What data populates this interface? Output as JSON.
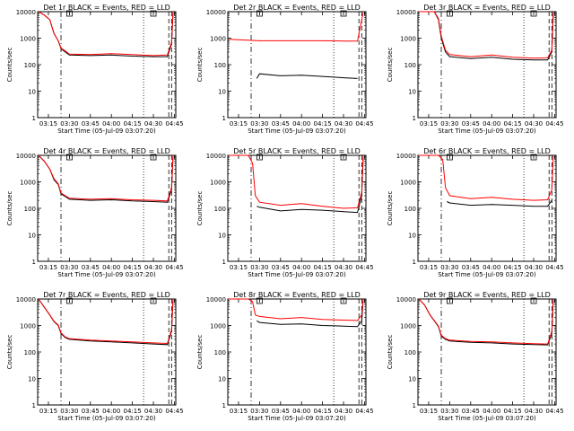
{
  "chart_data": [
    {
      "type": "line",
      "title": "Det 1r BLACK = Events, RED = LLD",
      "xlabel": "Start Time (05-Jul-09 03:07:20)",
      "ylabel": "Counts/sec",
      "yscale": "log",
      "ylim": [
        1,
        10000
      ],
      "x_tick_labels": [
        "03:15",
        "03:30",
        "03:45",
        "04:00",
        "04:15",
        "04:30",
        "04:45"
      ],
      "y_tick_labels": [
        "1",
        "10",
        "100",
        "1000",
        "10000"
      ],
      "grid": false,
      "series": [
        {
          "color": "#000000",
          "x": [
            "03:08",
            "03:12",
            "03:16",
            "03:19",
            "03:22",
            "03:24",
            "03:27",
            "03:30",
            "03:45",
            "04:00",
            "04:15",
            "04:30",
            "04:40",
            "04:43",
            "04:44"
          ],
          "values": [
            10000,
            7500,
            5000,
            1500,
            800,
            400,
            300,
            230,
            220,
            230,
            210,
            200,
            200,
            600,
            9000
          ]
        },
        {
          "color": "#ff0000",
          "x": [
            "03:08",
            "03:12",
            "03:16",
            "03:19",
            "03:22",
            "03:24",
            "03:27",
            "03:30",
            "03:45",
            "04:00",
            "04:15",
            "04:30",
            "04:40",
            "04:43",
            "04:44"
          ],
          "values": [
            10000,
            7500,
            5000,
            1500,
            800,
            420,
            330,
            250,
            240,
            260,
            240,
            220,
            230,
            700,
            10000
          ]
        }
      ]
    },
    {
      "type": "line",
      "title": "Det 2r BLACK = Events, RED = LLD",
      "xlabel": "Start Time (05-Jul-09 03:07:20)",
      "ylabel": "Counts/sec",
      "yscale": "log",
      "ylim": [
        1,
        10000
      ],
      "x_tick_labels": [
        "03:15",
        "03:30",
        "03:45",
        "04:00",
        "04:15",
        "04:30",
        "04:45"
      ],
      "y_tick_labels": [
        "1",
        "10",
        "100",
        "1000",
        "10000"
      ],
      "grid": false,
      "series": [
        {
          "color": "#000000",
          "x": [
            "03:28",
            "03:30",
            "03:45",
            "04:00",
            "04:15",
            "04:30",
            "04:40"
          ],
          "values": [
            30,
            45,
            38,
            40,
            36,
            32,
            30
          ]
        },
        {
          "color": "#ff0000",
          "x": [
            "03:08",
            "03:30",
            "03:45",
            "04:00",
            "04:15",
            "04:30",
            "04:40",
            "04:44"
          ],
          "values": [
            900,
            800,
            800,
            800,
            800,
            780,
            780,
            9000
          ]
        }
      ]
    },
    {
      "type": "line",
      "title": "Det 3r BLACK = Events, RED = LLD",
      "xlabel": "Start Time (05-Jul-09 03:07:20)",
      "ylabel": "Counts/sec",
      "yscale": "log",
      "ylim": [
        1,
        10000
      ],
      "x_tick_labels": [
        "03:15",
        "03:30",
        "03:45",
        "04:00",
        "04:15",
        "04:30",
        "04:45"
      ],
      "y_tick_labels": [
        "1",
        "10",
        "100",
        "1000",
        "10000"
      ],
      "grid": false,
      "series": [
        {
          "color": "#000000",
          "x": [
            "03:08",
            "03:12",
            "03:16",
            "03:19",
            "03:22",
            "03:24",
            "03:27",
            "03:30",
            "03:45",
            "04:00",
            "04:15",
            "04:30",
            "04:40",
            "04:43",
            "04:44"
          ],
          "values": [
            10000,
            10000,
            10000,
            10000,
            5000,
            1000,
            300,
            200,
            170,
            190,
            160,
            150,
            150,
            300,
            9000
          ]
        },
        {
          "color": "#ff0000",
          "x": [
            "03:08",
            "03:12",
            "03:16",
            "03:19",
            "03:22",
            "03:24",
            "03:27",
            "03:30",
            "03:45",
            "04:00",
            "04:15",
            "04:30",
            "04:40",
            "04:43",
            "04:44"
          ],
          "values": [
            10000,
            10000,
            10000,
            10000,
            5500,
            1200,
            350,
            240,
            200,
            230,
            190,
            175,
            180,
            350,
            10000
          ]
        }
      ]
    },
    {
      "type": "line",
      "title": "Det 4r BLACK = Events, RED = LLD",
      "xlabel": "Start Time (05-Jul-09 03:07:20)",
      "ylabel": "Counts/sec",
      "yscale": "log",
      "ylim": [
        1,
        10000
      ],
      "x_tick_labels": [
        "03:15",
        "03:30",
        "03:45",
        "04:00",
        "04:15",
        "04:30",
        "04:45"
      ],
      "y_tick_labels": [
        "1",
        "10",
        "100",
        "1000",
        "10000"
      ],
      "grid": false,
      "series": [
        {
          "color": "#000000",
          "x": [
            "03:08",
            "03:12",
            "03:16",
            "03:19",
            "03:22",
            "03:24",
            "03:27",
            "03:30",
            "03:45",
            "04:00",
            "04:15",
            "04:30",
            "04:40",
            "04:43",
            "04:44"
          ],
          "values": [
            10000,
            6000,
            3000,
            1200,
            800,
            350,
            280,
            220,
            200,
            210,
            190,
            180,
            170,
            500,
            9000
          ]
        },
        {
          "color": "#ff0000",
          "x": [
            "03:08",
            "03:12",
            "03:16",
            "03:19",
            "03:22",
            "03:24",
            "03:27",
            "03:30",
            "03:45",
            "04:00",
            "04:15",
            "04:30",
            "04:40",
            "04:43",
            "04:44"
          ],
          "values": [
            10000,
            6000,
            3000,
            1300,
            850,
            380,
            300,
            240,
            220,
            230,
            210,
            200,
            190,
            600,
            10000
          ]
        }
      ]
    },
    {
      "type": "line",
      "title": "Det 5r BLACK = Events, RED = LLD",
      "xlabel": "Start Time (05-Jul-09 03:07:20)",
      "ylabel": "Counts/sec",
      "yscale": "log",
      "ylim": [
        1,
        10000
      ],
      "x_tick_labels": [
        "03:15",
        "03:30",
        "03:45",
        "04:00",
        "04:15",
        "04:30",
        "04:45"
      ],
      "y_tick_labels": [
        "1",
        "10",
        "100",
        "1000",
        "10000"
      ],
      "grid": false,
      "series": [
        {
          "color": "#000000",
          "x": [
            "03:28",
            "03:30",
            "03:45",
            "04:00",
            "04:15",
            "04:30",
            "04:40",
            "04:43",
            "04:44"
          ],
          "values": [
            120,
            110,
            80,
            90,
            85,
            75,
            70,
            300,
            8000
          ]
        },
        {
          "color": "#ff0000",
          "x": [
            "03:08",
            "03:16",
            "03:22",
            "03:25",
            "03:27",
            "03:30",
            "03:45",
            "04:00",
            "04:15",
            "04:30",
            "04:40",
            "04:43",
            "04:44"
          ],
          "values": [
            10000,
            10000,
            10000,
            5000,
            300,
            170,
            130,
            150,
            120,
            100,
            105,
            400,
            10000
          ]
        }
      ]
    },
    {
      "type": "line",
      "title": "Det 6r BLACK = Events, RED = LLD",
      "xlabel": "Start Time (05-Jul-09 03:07:20)",
      "ylabel": "Counts/sec",
      "yscale": "log",
      "ylim": [
        1,
        10000
      ],
      "x_tick_labels": [
        "03:15",
        "03:30",
        "03:45",
        "04:00",
        "04:15",
        "04:30",
        "04:45"
      ],
      "y_tick_labels": [
        "1",
        "10",
        "100",
        "1000",
        "10000"
      ],
      "grid": false,
      "series": [
        {
          "color": "#000000",
          "x": [
            "03:28",
            "03:30",
            "03:45",
            "04:00",
            "04:15",
            "04:30",
            "04:40",
            "04:43"
          ],
          "values": [
            180,
            160,
            130,
            140,
            130,
            120,
            120,
            200
          ]
        },
        {
          "color": "#ff0000",
          "x": [
            "03:08",
            "03:16",
            "03:22",
            "03:25",
            "03:27",
            "03:30",
            "03:45",
            "04:00",
            "04:15",
            "04:30",
            "04:40",
            "04:43",
            "04:44"
          ],
          "values": [
            10000,
            10000,
            10000,
            7000,
            600,
            300,
            230,
            260,
            220,
            200,
            210,
            500,
            10000
          ]
        }
      ]
    },
    {
      "type": "line",
      "title": "Det 7r BLACK = Events, RED = LLD",
      "xlabel": "Start Time (05-Jul-09 03:07:20)",
      "ylabel": "Counts/sec",
      "yscale": "log",
      "ylim": [
        1,
        10000
      ],
      "x_tick_labels": [
        "03:15",
        "03:30",
        "03:45",
        "04:00",
        "04:15",
        "04:30",
        "04:45"
      ],
      "y_tick_labels": [
        "1",
        "10",
        "100",
        "1000",
        "10000"
      ],
      "grid": false,
      "series": [
        {
          "color": "#000000",
          "x": [
            "03:08",
            "03:12",
            "03:16",
            "03:19",
            "03:22",
            "03:24",
            "03:27",
            "03:30",
            "03:45",
            "04:00",
            "04:15",
            "04:30",
            "04:40",
            "04:43",
            "04:44"
          ],
          "values": [
            10000,
            5000,
            2500,
            1400,
            1000,
            500,
            350,
            300,
            260,
            240,
            220,
            200,
            190,
            600,
            9000
          ]
        },
        {
          "color": "#ff0000",
          "x": [
            "03:08",
            "03:12",
            "03:16",
            "03:19",
            "03:22",
            "03:24",
            "03:27",
            "03:30",
            "03:45",
            "04:00",
            "04:15",
            "04:30",
            "04:40",
            "04:43",
            "04:44"
          ],
          "values": [
            10000,
            5000,
            2500,
            1450,
            1050,
            530,
            370,
            320,
            280,
            260,
            240,
            220,
            210,
            700,
            10000
          ]
        }
      ]
    },
    {
      "type": "line",
      "title": "Det 8r BLACK = Events, RED = LLD",
      "xlabel": "Start Time (05-Jul-09 03:07:20)",
      "ylabel": "Counts/sec",
      "yscale": "log",
      "ylim": [
        1,
        10000
      ],
      "x_tick_labels": [
        "03:15",
        "03:30",
        "03:45",
        "04:00",
        "04:15",
        "04:30",
        "04:45"
      ],
      "y_tick_labels": [
        "1",
        "10",
        "100",
        "1000",
        "10000"
      ],
      "grid": false,
      "series": [
        {
          "color": "#000000",
          "x": [
            "03:28",
            "03:30",
            "03:45",
            "04:00",
            "04:15",
            "04:30",
            "04:40",
            "04:43",
            "04:44"
          ],
          "values": [
            1500,
            1300,
            1100,
            1150,
            1000,
            950,
            900,
            1500,
            9000
          ]
        },
        {
          "color": "#ff0000",
          "x": [
            "03:08",
            "03:16",
            "03:22",
            "03:25",
            "03:27",
            "03:30",
            "03:45",
            "04:00",
            "04:15",
            "04:30",
            "04:40",
            "04:43",
            "04:44"
          ],
          "values": [
            10000,
            10000,
            10000,
            8000,
            2500,
            2200,
            1800,
            2000,
            1700,
            1600,
            1550,
            2500,
            10000
          ]
        }
      ]
    },
    {
      "type": "line",
      "title": "Det 9r BLACK = Events, RED = LLD",
      "xlabel": "Start Time (05-Jul-09 03:07:20)",
      "ylabel": "Counts/sec",
      "yscale": "log",
      "ylim": [
        1,
        10000
      ],
      "x_tick_labels": [
        "03:15",
        "03:30",
        "03:45",
        "04:00",
        "04:15",
        "04:30",
        "04:45"
      ],
      "y_tick_labels": [
        "1",
        "10",
        "100",
        "1000",
        "10000"
      ],
      "grid": false,
      "series": [
        {
          "color": "#000000",
          "x": [
            "03:08",
            "03:12",
            "03:16",
            "03:19",
            "03:22",
            "03:24",
            "03:27",
            "03:30",
            "03:45",
            "04:00",
            "04:15",
            "04:30",
            "04:40",
            "04:43",
            "04:44"
          ],
          "values": [
            10000,
            6000,
            2500,
            1500,
            900,
            400,
            300,
            260,
            230,
            220,
            200,
            190,
            185,
            500,
            9000
          ]
        },
        {
          "color": "#ff0000",
          "x": [
            "03:08",
            "03:12",
            "03:16",
            "03:19",
            "03:22",
            "03:24",
            "03:27",
            "03:30",
            "03:45",
            "04:00",
            "04:15",
            "04:30",
            "04:40",
            "04:43",
            "04:44"
          ],
          "values": [
            10000,
            6000,
            2500,
            1550,
            950,
            430,
            320,
            280,
            250,
            240,
            220,
            205,
            200,
            600,
            10000
          ]
        }
      ]
    }
  ]
}
